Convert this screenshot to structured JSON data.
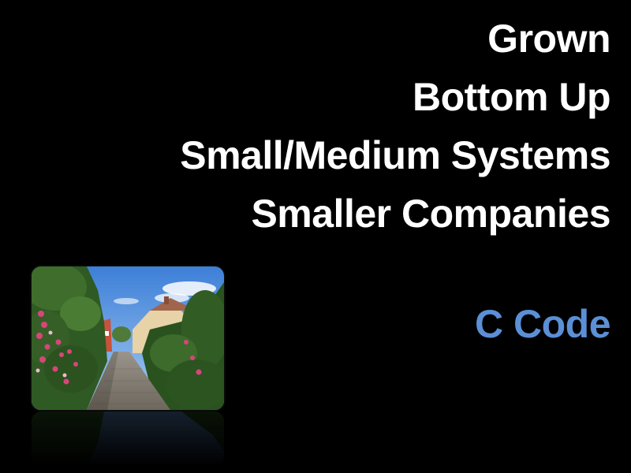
{
  "slide": {
    "lines": [
      "Grown",
      "Bottom Up",
      "Small/Medium Systems",
      "Smaller Companies"
    ],
    "accent_line": "C Code"
  },
  "photo": {
    "icon": "village-lane-photo"
  },
  "colors": {
    "background": "#000000",
    "text": "#ffffff",
    "accent": "#5b8fd6"
  }
}
